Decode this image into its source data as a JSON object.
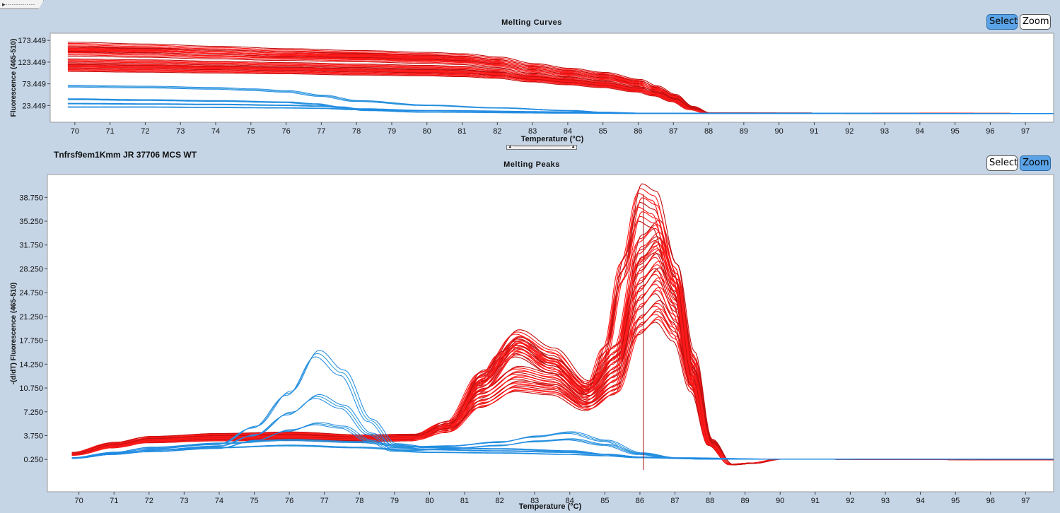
{
  "window": {
    "collapse_handle_label": "▸··············"
  },
  "top_panel": {
    "title": "Melting Curves",
    "select_label": "Select",
    "zoom_label": "Zoom",
    "active_tool": "select"
  },
  "splitter": {
    "label": "▲ ········································ ▲"
  },
  "bottom_panel": {
    "sample_name": "Tnfrsf9em1Kmm JR 37706 MCS WT",
    "title": "Melting Peaks",
    "select_label": "Select",
    "zoom_label": "Zoom",
    "active_tool": "zoom"
  },
  "colors": {
    "group_a": "#ff1a1a",
    "group_a_dark": "#c01010",
    "group_b": "#1e88e5",
    "group_b_alt": "#2a9ad0",
    "cursor": "#a01010"
  },
  "chart_data": [
    {
      "type": "line",
      "title": "Melting Curves",
      "xlabel": "Temperature (°C)",
      "ylabel": "Fluorescence (465-510)",
      "xlim": [
        69.3,
        97.8
      ],
      "ylim": [
        -15,
        190
      ],
      "xticks": [
        70,
        71,
        72,
        73,
        74,
        75,
        76,
        77,
        78,
        79,
        80,
        81,
        82,
        83,
        84,
        85,
        86,
        87,
        88,
        89,
        90,
        91,
        92,
        93,
        94,
        95,
        96,
        97
      ],
      "yticks": [
        "23.449",
        "73.449",
        "123.449",
        "173.449"
      ],
      "ytick_values": [
        23.449,
        73.449,
        123.449,
        173.449
      ],
      "series": [
        {
          "group": "red",
          "x": [
            69.8,
            72,
            74,
            76,
            78,
            80,
            81,
            82,
            83,
            84,
            85,
            86,
            86.5,
            87,
            87.5,
            88,
            98
          ],
          "y": [
            158,
            154,
            149,
            144,
            140,
            136,
            133,
            126,
            112,
            102,
            93,
            78,
            64,
            46,
            20,
            6,
            5
          ]
        },
        {
          "group": "red",
          "x": [
            69.8,
            72,
            74,
            76,
            78,
            80,
            81,
            82,
            83,
            84,
            85,
            86,
            86.5,
            87,
            87.5,
            88,
            98
          ],
          "y": [
            148,
            145,
            141,
            137,
            134,
            130,
            127,
            120,
            106,
            97,
            88,
            74,
            60,
            43,
            18,
            6,
            5
          ]
        },
        {
          "group": "red",
          "x": [
            69.8,
            72,
            74,
            76,
            78,
            80,
            81,
            82,
            83,
            84,
            85,
            86,
            86.5,
            87,
            87.5,
            88,
            98
          ],
          "y": [
            122,
            120,
            117,
            114,
            111,
            108,
            106,
            101,
            90,
            82,
            74,
            62,
            51,
            37,
            16,
            6,
            5
          ]
        },
        {
          "group": "red",
          "x": [
            69.8,
            72,
            74,
            76,
            78,
            80,
            81,
            82,
            83,
            84,
            85,
            86,
            86.5,
            87,
            87.5,
            88,
            98
          ],
          "y": [
            110,
            108,
            106,
            104,
            101,
            99,
            97,
            93,
            84,
            77,
            70,
            59,
            49,
            35,
            15,
            6,
            5
          ]
        },
        {
          "group": "blue",
          "x": [
            69.8,
            72,
            74,
            75,
            76,
            77,
            78,
            80,
            82,
            84,
            85,
            86,
            98
          ],
          "y": [
            68,
            66,
            63,
            60,
            56,
            46,
            34,
            24,
            18,
            12,
            8,
            6,
            5
          ]
        },
        {
          "group": "blue",
          "x": [
            69.8,
            72,
            74,
            76,
            76.8,
            77.5,
            78.3,
            80,
            84,
            86,
            98
          ],
          "y": [
            38,
            36,
            34,
            31,
            27,
            20,
            12,
            8,
            6,
            5,
            5
          ]
        },
        {
          "group": "blue",
          "x": [
            69.8,
            72,
            74,
            76,
            77,
            78,
            80,
            84,
            86,
            98
          ],
          "y": [
            28,
            27,
            26,
            24,
            22,
            16,
            12,
            9,
            6,
            5
          ]
        },
        {
          "group": "blue",
          "x": [
            69.8,
            72,
            74,
            76,
            77,
            78,
            80,
            84,
            86,
            98
          ],
          "y": [
            20,
            20,
            19,
            18,
            17,
            14,
            11,
            8,
            6,
            5
          ]
        }
      ]
    },
    {
      "type": "line",
      "title": "Melting Peaks",
      "xlabel": "Temperature (°C)",
      "ylabel": "-(d/dT) Fluorescence (465-510)",
      "xlim": [
        69.1,
        97.8
      ],
      "ylim": [
        -4.5,
        42.1
      ],
      "xticks": [
        70,
        71,
        72,
        73,
        74,
        75,
        76,
        77,
        78,
        79,
        80,
        81,
        82,
        83,
        84,
        85,
        86,
        87,
        88,
        89,
        90,
        91,
        92,
        93,
        94,
        95,
        96,
        97
      ],
      "yticks": [
        "0.250",
        "3.750",
        "7.250",
        "10.750",
        "14.250",
        "17.750",
        "21.250",
        "24.750",
        "28.250",
        "31.750",
        "35.250",
        "38.750"
      ],
      "ytick_values": [
        0.25,
        3.75,
        7.25,
        10.75,
        14.25,
        17.75,
        21.25,
        24.75,
        28.25,
        31.75,
        35.25,
        38.75
      ],
      "vertical_cursor_x": 86.1,
      "series": [
        {
          "group": "red",
          "x": [
            69.8,
            71,
            72,
            74,
            76,
            78,
            79.5,
            80.5,
            81.5,
            82.5,
            83.5,
            84.5,
            85.3,
            86,
            86.5,
            87,
            87.5,
            88,
            88.6,
            89.2,
            90,
            98
          ],
          "y": [
            1,
            2.4,
            3.2,
            3.6,
            3.8,
            3.4,
            3.6,
            5.5,
            12.5,
            18,
            15.5,
            11,
            16,
            31,
            33,
            27,
            15,
            3,
            -0.5,
            -0.3,
            0.3,
            0.2
          ]
        },
        {
          "group": "red",
          "x": [
            69.8,
            71,
            72,
            74,
            76,
            78,
            79.5,
            80.5,
            81.5,
            82.5,
            83.5,
            84.5,
            85.3,
            86,
            86.5,
            87,
            87.5,
            88,
            88.6,
            89.2,
            90,
            98
          ],
          "y": [
            1,
            2.2,
            3,
            3.4,
            3.5,
            3.2,
            3.4,
            5,
            11,
            16.5,
            14,
            10,
            14.5,
            28,
            30.5,
            25,
            14,
            3,
            -0.5,
            -0.3,
            0.3,
            0.2
          ]
        },
        {
          "group": "red",
          "x": [
            69.8,
            71,
            72,
            74,
            76,
            78,
            79.5,
            80.5,
            81.5,
            82.5,
            83.5,
            84.5,
            85.3,
            86,
            86.5,
            87,
            87.5,
            88,
            88.6,
            89.2,
            90,
            98
          ],
          "y": [
            1.2,
            2.6,
            3.4,
            3.8,
            4,
            3.6,
            3.7,
            5.2,
            10,
            13,
            12,
            9,
            12.5,
            24,
            26.5,
            22,
            12.5,
            2.8,
            -0.5,
            -0.3,
            0.3,
            0.2
          ]
        },
        {
          "group": "red",
          "x": [
            69.8,
            71,
            72,
            74,
            76,
            78,
            79.5,
            80.5,
            81.5,
            82.5,
            83.5,
            84.5,
            85.3,
            86,
            86.5,
            87,
            87.5,
            88,
            88.6,
            89.2,
            90,
            98
          ],
          "y": [
            0.9,
            2.1,
            2.9,
            3.2,
            3.3,
            3,
            3.2,
            4.5,
            8.5,
            11,
            10.5,
            8,
            10.5,
            20,
            22,
            19,
            11,
            2.6,
            -0.5,
            -0.3,
            0.3,
            0.2
          ]
        },
        {
          "group": "red",
          "x": [
            69.8,
            71,
            72,
            74,
            76,
            78,
            79.5,
            80.5,
            81.5,
            82,
            82.5,
            83.5,
            84.5,
            85,
            85.5,
            86,
            86.4,
            87,
            87.5,
            88,
            88.6,
            89.2,
            90,
            98
          ],
          "y": [
            1,
            2.3,
            3.1,
            3.5,
            3.6,
            3.3,
            3.5,
            5.2,
            12,
            15,
            17,
            14,
            10.5,
            16,
            28,
            38,
            37,
            27,
            12,
            2.5,
            -0.5,
            -0.3,
            0.3,
            0.2
          ]
        },
        {
          "group": "blue",
          "x": [
            69.8,
            71,
            72,
            74,
            75,
            76,
            76.8,
            77.5,
            78.3,
            79,
            80,
            82,
            84,
            85,
            86,
            88,
            98
          ],
          "y": [
            0.5,
            1.2,
            1.8,
            2.5,
            5,
            10,
            15.8,
            13,
            6,
            2.5,
            2,
            1.8,
            1.5,
            1,
            0.6,
            0.3,
            0.3
          ]
        },
        {
          "group": "blue",
          "x": [
            69.8,
            71,
            72,
            74,
            75,
            76,
            76.8,
            77.5,
            78.3,
            79,
            80,
            82,
            84,
            85,
            86,
            88,
            98
          ],
          "y": [
            0.5,
            1.1,
            1.6,
            2.2,
            3.8,
            7,
            9.5,
            8,
            4,
            2,
            1.7,
            1.5,
            1.3,
            1,
            0.6,
            0.3,
            0.3
          ]
        },
        {
          "group": "blue",
          "x": [
            69.8,
            71,
            72,
            74,
            75,
            76,
            76.8,
            77.5,
            78.3,
            79,
            80,
            82,
            84,
            85,
            86,
            88,
            98
          ],
          "y": [
            0.4,
            1,
            1.4,
            1.9,
            3,
            4.5,
            5.5,
            5,
            3,
            1.5,
            1.3,
            1.2,
            1,
            0.8,
            0.5,
            0.3,
            0.3
          ]
        },
        {
          "group": "blue",
          "x": [
            69.8,
            71,
            72,
            74,
            76,
            78,
            79.5,
            80.5,
            82,
            83,
            84,
            85,
            86,
            87,
            90,
            98
          ],
          "y": [
            0.5,
            1.3,
            2,
            2.6,
            3.1,
            2.8,
            2.1,
            2.2,
            2.8,
            3.6,
            4.2,
            3,
            1.2,
            0.5,
            0.3,
            0.3
          ]
        },
        {
          "group": "blue",
          "x": [
            69.8,
            71,
            72,
            74,
            76,
            78,
            79.5,
            80.5,
            82,
            83,
            84,
            85,
            86,
            87,
            90,
            98
          ],
          "y": [
            0.4,
            1,
            1.6,
            2,
            2.3,
            2,
            1.6,
            1.8,
            2.3,
            2.9,
            3.2,
            2.4,
            1,
            0.4,
            0.3,
            0.3
          ]
        }
      ]
    }
  ]
}
